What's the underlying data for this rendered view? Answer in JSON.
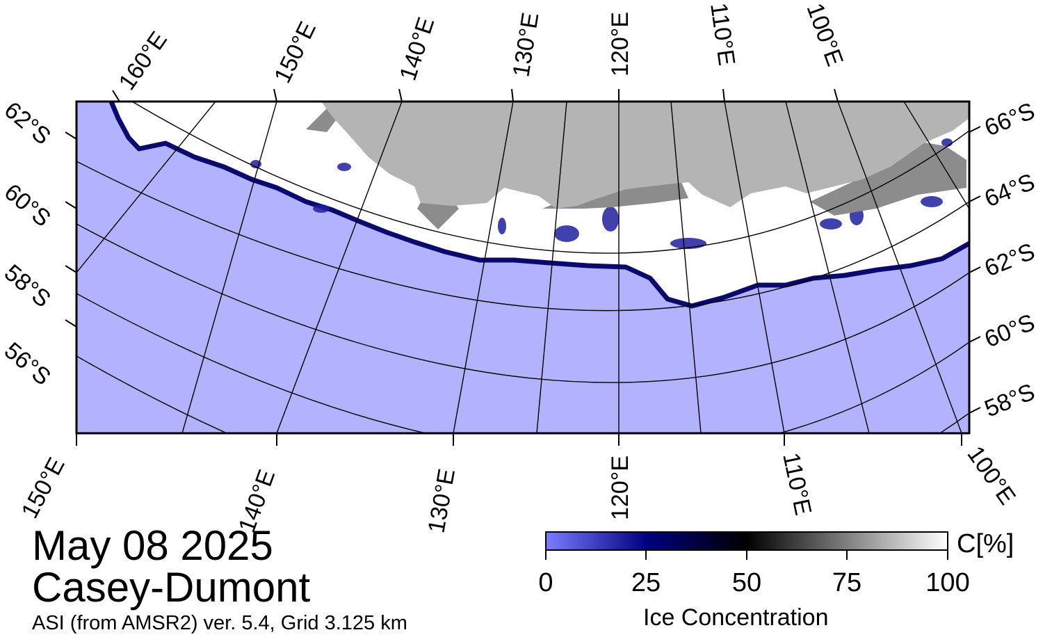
{
  "title": {
    "date": "May 08 2025",
    "region": "Casey-Dumont",
    "product": "ASI (from AMSR2) ver. 5.4,  Grid 3.125 km"
  },
  "map": {
    "projection": "polar stereographic (south)",
    "top_longitude_labels": [
      "160°E",
      "150°E",
      "140°E",
      "130°E",
      "120°E",
      "110°E",
      "100°E"
    ],
    "bottom_longitude_labels": [
      "150°E",
      "140°E",
      "130°E",
      "120°E",
      "110°E",
      "100°E"
    ],
    "left_latitude_labels": [
      "62°S",
      "60°S",
      "58°S",
      "56°S"
    ],
    "right_latitude_labels": [
      "66°S",
      "64°S",
      "62°S",
      "60°S",
      "58°S"
    ],
    "colors": {
      "ocean": "#b2b2ff",
      "land": "#b4b4b4",
      "grounded_ice": "#8c8c8c",
      "sea_ice": "#ffffff",
      "ice_edge": "#0a0a6e",
      "graticule": "#000000"
    }
  },
  "colorbar": {
    "title": "Ice Concentration",
    "unit": "C[%]",
    "ticks": [
      "0",
      "25",
      "50",
      "75",
      "100"
    ],
    "stops": [
      "#7c7cff",
      "#000080",
      "#000000",
      "#808080",
      "#ffffff"
    ]
  }
}
